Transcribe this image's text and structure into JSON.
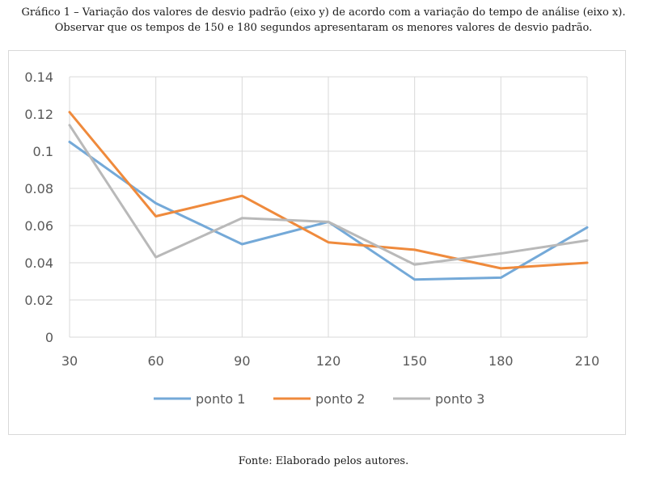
{
  "caption": {
    "line1": "Gráfico 1 – Variação dos valores de desvio padrão (eixo y) de acordo com a variação do tempo de análise (eixo x).",
    "line2": "Observar que os tempos de 150 e 180 segundos apresentaram os menores valores de desvio padrão."
  },
  "source": "Fonte: Elaborado pelos autores.",
  "chart_data": {
    "type": "line",
    "title": "",
    "xlabel": "",
    "ylabel": "",
    "x": [
      30,
      60,
      90,
      120,
      150,
      180,
      210
    ],
    "x_tick_labels": [
      "30",
      "60",
      "90",
      "120",
      "150",
      "180",
      "210"
    ],
    "ylim": [
      0,
      0.14
    ],
    "y_ticks": [
      0,
      0.02,
      0.04,
      0.06,
      0.08,
      0.1,
      0.12,
      0.14
    ],
    "y_tick_labels": [
      "0",
      "0.02",
      "0.04",
      "0.06",
      "0.08",
      "0.1",
      "0.12",
      "0.14"
    ],
    "grid": true,
    "legend_position": "bottom",
    "series": [
      {
        "name": "ponto 1",
        "color": "#74a9d8",
        "values": [
          0.105,
          0.072,
          0.05,
          0.062,
          0.031,
          0.032,
          0.059
        ]
      },
      {
        "name": "ponto 2",
        "color": "#ef8a3c",
        "values": [
          0.121,
          0.065,
          0.076,
          0.051,
          0.047,
          0.037,
          0.04
        ]
      },
      {
        "name": "ponto 3",
        "color": "#b9b9b9",
        "values": [
          0.114,
          0.043,
          0.064,
          0.062,
          0.039,
          0.045,
          0.052
        ]
      }
    ]
  }
}
